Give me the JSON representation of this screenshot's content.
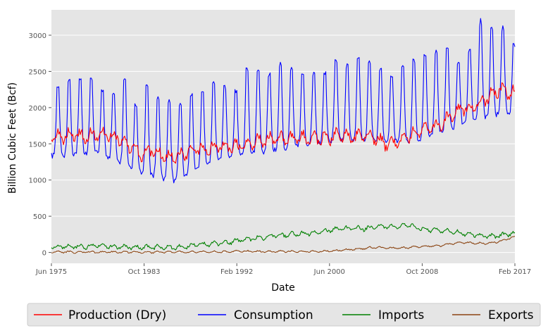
{
  "chart_data": {
    "type": "line",
    "title": "",
    "xlabel": "Date",
    "ylabel": "Billion Cubic Feet (Bcf)",
    "x_ticks": [
      "Jun 1975",
      "Oct 1983",
      "Feb 1992",
      "Jun 2000",
      "Oct 2008",
      "Feb 2017"
    ],
    "x_range": [
      "1975-06",
      "2017-02"
    ],
    "ylim": [
      -150,
      3350
    ],
    "y_ticks": [
      0,
      500,
      1000,
      1500,
      2000,
      2500,
      3000
    ],
    "grid": true,
    "legend_position": "bottom",
    "series": [
      {
        "name": "Production (Dry)",
        "color": "#ff0000",
        "annual_mean": [
          [
            "1975",
            1600
          ],
          [
            "1976",
            1610
          ],
          [
            "1977",
            1620
          ],
          [
            "1978",
            1600
          ],
          [
            "1979",
            1640
          ],
          [
            "1980",
            1620
          ],
          [
            "1981",
            1590
          ],
          [
            "1982",
            1470
          ],
          [
            "1983",
            1360
          ],
          [
            "1984",
            1430
          ],
          [
            "1985",
            1330
          ],
          [
            "1986",
            1320
          ],
          [
            "1987",
            1380
          ],
          [
            "1988",
            1420
          ],
          [
            "1989",
            1430
          ],
          [
            "1990",
            1470
          ],
          [
            "1991",
            1460
          ],
          [
            "1992",
            1480
          ],
          [
            "1993",
            1520
          ],
          [
            "1994",
            1560
          ],
          [
            "1995",
            1560
          ],
          [
            "1996",
            1570
          ],
          [
            "1997",
            1570
          ],
          [
            "1998",
            1580
          ],
          [
            "1999",
            1570
          ],
          [
            "2000",
            1590
          ],
          [
            "2001",
            1630
          ],
          [
            "2002",
            1580
          ],
          [
            "2003",
            1600
          ],
          [
            "2004",
            1570
          ],
          [
            "2005",
            1500
          ],
          [
            "2006",
            1530
          ],
          [
            "2007",
            1600
          ],
          [
            "2008",
            1700
          ],
          [
            "2009",
            1720
          ],
          [
            "2010",
            1790
          ],
          [
            "2011",
            1900
          ],
          [
            "2012",
            1990
          ],
          [
            "2013",
            2010
          ],
          [
            "2014",
            2120
          ],
          [
            "2015",
            2250
          ],
          [
            "2016",
            2220
          ],
          [
            "2017",
            2180
          ]
        ],
        "seasonal_amplitude": 70
      },
      {
        "name": "Consumption",
        "color": "#0000ff",
        "annual_mean": [
          [
            "1975",
            1650
          ],
          [
            "1976",
            1700
          ],
          [
            "1977",
            1640
          ],
          [
            "1978",
            1650
          ],
          [
            "1979",
            1700
          ],
          [
            "1980",
            1650
          ],
          [
            "1981",
            1600
          ],
          [
            "1982",
            1500
          ],
          [
            "1983",
            1430
          ],
          [
            "1984",
            1500
          ],
          [
            "1985",
            1450
          ],
          [
            "1986",
            1380
          ],
          [
            "1987",
            1450
          ],
          [
            "1988",
            1530
          ],
          [
            "1989",
            1610
          ],
          [
            "1990",
            1560
          ],
          [
            "1991",
            1600
          ],
          [
            "1992",
            1640
          ],
          [
            "1993",
            1690
          ],
          [
            "1994",
            1710
          ],
          [
            "1995",
            1790
          ],
          [
            "1996",
            1820
          ],
          [
            "1997",
            1810
          ],
          [
            "1998",
            1750
          ],
          [
            "1999",
            1800
          ],
          [
            "2000",
            1860
          ],
          [
            "2001",
            1800
          ],
          [
            "2002",
            1850
          ],
          [
            "2003",
            1830
          ],
          [
            "2004",
            1830
          ],
          [
            "2005",
            1850
          ],
          [
            "2006",
            1800
          ],
          [
            "2007",
            1940
          ],
          [
            "2008",
            1950
          ],
          [
            "2009",
            1900
          ],
          [
            "2010",
            2000
          ],
          [
            "2011",
            2030
          ],
          [
            "2012",
            2140
          ],
          [
            "2013",
            2180
          ],
          [
            "2014",
            2230
          ],
          [
            "2015",
            2300
          ],
          [
            "2016",
            2300
          ],
          [
            "2017",
            2300
          ]
        ],
        "winter_peaks": [
          [
            "1976-01",
            2290
          ],
          [
            "1977-01",
            2400
          ],
          [
            "1978-01",
            2380
          ],
          [
            "1979-01",
            2420
          ],
          [
            "1980-01",
            2240
          ],
          [
            "1981-01",
            2200
          ],
          [
            "1982-01",
            2400
          ],
          [
            "1983-01",
            2000
          ],
          [
            "1984-01",
            2340
          ],
          [
            "1985-01",
            2140
          ],
          [
            "1986-01",
            2110
          ],
          [
            "1987-01",
            2040
          ],
          [
            "1988-01",
            2200
          ],
          [
            "1989-01",
            2250
          ],
          [
            "1990-01",
            2330
          ],
          [
            "1991-01",
            2300
          ],
          [
            "1992-01",
            2240
          ],
          [
            "1993-01",
            2560
          ],
          [
            "1994-01",
            2500
          ],
          [
            "1995-01",
            2460
          ],
          [
            "1996-01",
            2600
          ],
          [
            "1997-01",
            2540
          ],
          [
            "1998-01",
            2440
          ],
          [
            "1999-01",
            2460
          ],
          [
            "2000-01",
            2460
          ],
          [
            "2001-01",
            2660
          ],
          [
            "2002-01",
            2580
          ],
          [
            "2003-01",
            2700
          ],
          [
            "2004-01",
            2660
          ],
          [
            "2005-01",
            2540
          ],
          [
            "2006-01",
            2440
          ],
          [
            "2007-01",
            2560
          ],
          [
            "2008-01",
            2660
          ],
          [
            "2009-01",
            2740
          ],
          [
            "2010-01",
            2760
          ],
          [
            "2011-01",
            2830
          ],
          [
            "2012-01",
            2620
          ],
          [
            "2013-01",
            2800
          ],
          [
            "2014-01",
            3200
          ],
          [
            "2015-01",
            3100
          ],
          [
            "2016-01",
            3100
          ],
          [
            "2017-01",
            2870
          ]
        ],
        "summer_troughs": [
          [
            "1976-07",
            1300
          ],
          [
            "1979-07",
            1350
          ],
          [
            "1983-07",
            1050
          ],
          [
            "1986-07",
            950
          ],
          [
            "1990-07",
            1250
          ],
          [
            "2000-07",
            1500
          ],
          [
            "2008-07",
            1500
          ],
          [
            "2012-07",
            1750
          ],
          [
            "2016-07",
            1900
          ]
        ]
      },
      {
        "name": "Imports",
        "color": "#008000",
        "annual_mean": [
          [
            "1975",
            80
          ],
          [
            "1976",
            80
          ],
          [
            "1977",
            85
          ],
          [
            "1978",
            80
          ],
          [
            "1979",
            100
          ],
          [
            "1980",
            85
          ],
          [
            "1981",
            75
          ],
          [
            "1982",
            75
          ],
          [
            "1983",
            75
          ],
          [
            "1984",
            70
          ],
          [
            "1985",
            75
          ],
          [
            "1986",
            65
          ],
          [
            "1987",
            80
          ],
          [
            "1988",
            110
          ],
          [
            "1989",
            115
          ],
          [
            "1990",
            130
          ],
          [
            "1991",
            145
          ],
          [
            "1992",
            175
          ],
          [
            "1993",
            190
          ],
          [
            "1994",
            210
          ],
          [
            "1995",
            240
          ],
          [
            "1996",
            245
          ],
          [
            "1997",
            255
          ],
          [
            "1998",
            265
          ],
          [
            "1999",
            285
          ],
          [
            "2000",
            310
          ],
          [
            "2001",
            330
          ],
          [
            "2002",
            330
          ],
          [
            "2003",
            330
          ],
          [
            "2004",
            350
          ],
          [
            "2005",
            360
          ],
          [
            "2006",
            350
          ],
          [
            "2007",
            385
          ],
          [
            "2008",
            330
          ],
          [
            "2009",
            310
          ],
          [
            "2010",
            310
          ],
          [
            "2011",
            285
          ],
          [
            "2012",
            260
          ],
          [
            "2013",
            245
          ],
          [
            "2014",
            225
          ],
          [
            "2015",
            225
          ],
          [
            "2016",
            250
          ],
          [
            "2017",
            270
          ]
        ],
        "seasonal_amplitude": 25
      },
      {
        "name": "Exports",
        "color": "#8b4513",
        "annual_mean": [
          [
            "1975",
            6
          ],
          [
            "1976",
            6
          ],
          [
            "1977",
            5
          ],
          [
            "1978",
            5
          ],
          [
            "1979",
            5
          ],
          [
            "1980",
            4
          ],
          [
            "1981",
            5
          ],
          [
            "1982",
            4
          ],
          [
            "1983",
            5
          ],
          [
            "1984",
            4
          ],
          [
            "1985",
            5
          ],
          [
            "1986",
            5
          ],
          [
            "1987",
            5
          ],
          [
            "1988",
            6
          ],
          [
            "1989",
            9
          ],
          [
            "1990",
            7
          ],
          [
            "1991",
            11
          ],
          [
            "1992",
            18
          ],
          [
            "1993",
            12
          ],
          [
            "1994",
            13
          ],
          [
            "1995",
            13
          ],
          [
            "1996",
            13
          ],
          [
            "1997",
            13
          ],
          [
            "1998",
            13
          ],
          [
            "1999",
            14
          ],
          [
            "2000",
            20
          ],
          [
            "2001",
            30
          ],
          [
            "2002",
            43
          ],
          [
            "2003",
            57
          ],
          [
            "2004",
            72
          ],
          [
            "2005",
            62
          ],
          [
            "2006",
            60
          ],
          [
            "2007",
            68
          ],
          [
            "2008",
            80
          ],
          [
            "2009",
            90
          ],
          [
            "2010",
            95
          ],
          [
            "2011",
            125
          ],
          [
            "2012",
            135
          ],
          [
            "2013",
            130
          ],
          [
            "2014",
            125
          ],
          [
            "2015",
            145
          ],
          [
            "2016",
            190
          ],
          [
            "2017",
            245
          ]
        ],
        "seasonal_amplitude": 10
      }
    ]
  }
}
